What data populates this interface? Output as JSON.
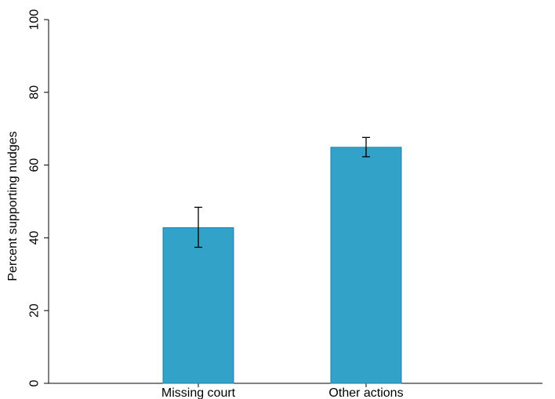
{
  "chart_data": {
    "type": "bar",
    "categories": [
      "Missing court",
      "Other actions"
    ],
    "values": [
      42.8,
      64.9
    ],
    "error_bars": [
      {
        "low": 37.4,
        "high": 48.4
      },
      {
        "low": 62.3,
        "high": 67.6
      }
    ],
    "xlabel": "",
    "ylabel": "Percent supporting nudges",
    "ylim": [
      0,
      100
    ],
    "yticks": [
      0,
      20,
      40,
      60,
      80,
      100
    ],
    "grid": false,
    "colors": {
      "bar_fill": "#33a2c9",
      "bar_stroke": "#1f7fa6",
      "axis": "#000000"
    }
  }
}
